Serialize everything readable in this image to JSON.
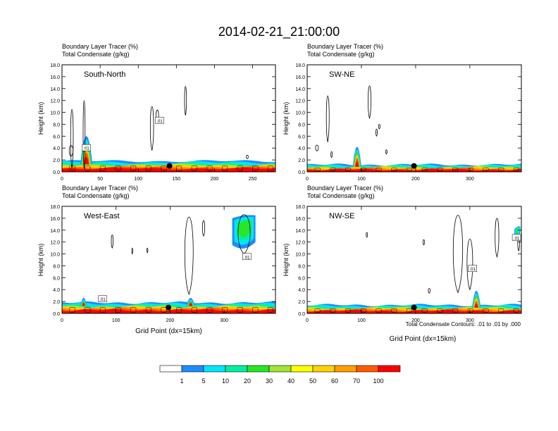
{
  "figure": {
    "title": "2014-02-21_21:00:00",
    "footnote": "Total Condensate Contours: .01 to .01 by .000"
  },
  "colors": {
    "scale": [
      "#ffffff",
      "#1e8cff",
      "#00e6ff",
      "#00f0a0",
      "#28e628",
      "#a0e632",
      "#ffff00",
      "#ffd200",
      "#ffa000",
      "#ff5a00",
      "#ff0000"
    ],
    "contour": "#000000",
    "dot": "#000000"
  },
  "colorbar": {
    "labels": [
      "1",
      "5",
      "10",
      "20",
      "30",
      "40",
      "50",
      "60",
      "70",
      "100"
    ]
  },
  "chart_data": [
    {
      "type": "heatmap",
      "panel": "South-North",
      "title_line1": "Boundary Layer Tracer   (%)",
      "title_line2": "Total Condensate   (g/kg)",
      "label": "South-North",
      "xlabel": "",
      "ylabel": "Height (km)",
      "xlim": [
        0,
        280
      ],
      "ylim": [
        0,
        18
      ],
      "xticks": [
        "0",
        "50",
        "100",
        "150",
        "200",
        "250"
      ],
      "xtick_values": [
        0,
        50,
        100,
        150,
        200,
        250
      ],
      "yticks": [
        "0.0",
        "2.0",
        "4.0",
        "6.0",
        "8.0",
        "10.0",
        "12.0",
        "14.0",
        "16.0",
        "18.0"
      ],
      "bl_top_km": 1.8,
      "plumes": [
        {
          "x": 32,
          "top_km": 6.0,
          "width": 8
        }
      ],
      "dot": {
        "x": 141,
        "y_km": 1.0
      },
      "contour_labels": [
        {
          "x": 128,
          "y_km": 8.6,
          "text": ".01"
        },
        {
          "x": 32,
          "y_km": 4.0,
          "text": ".01"
        }
      ],
      "clouds": [
        {
          "x": 13,
          "ybot": 0.5,
          "ytop": 10.5,
          "w": 4
        },
        {
          "x": 29,
          "ybot": 0.5,
          "ytop": 12.0,
          "w": 3
        },
        {
          "x": 12,
          "ybot": 2.6,
          "ytop": 4.4,
          "w": 6
        },
        {
          "x": 118,
          "ybot": 3.6,
          "ytop": 11.0,
          "w": 5
        },
        {
          "x": 125,
          "ybot": 8.2,
          "ytop": 10.4,
          "w": 4
        },
        {
          "x": 162,
          "ybot": 9.5,
          "ytop": 14.4,
          "w": 3
        },
        {
          "x": 243,
          "ybot": 2.2,
          "ytop": 2.8,
          "w": 3
        }
      ]
    },
    {
      "type": "heatmap",
      "panel": "SW-NE",
      "title_line1": "Boundary Layer Tracer   (%)",
      "title_line2": "Total Condensate   (g/kg)",
      "label": "SW-NE",
      "xlabel": "",
      "ylabel": "Height (km)",
      "xlim": [
        0,
        395
      ],
      "ylim": [
        0,
        18
      ],
      "xticks": [
        "0",
        "100",
        "200",
        "300"
      ],
      "xtick_values": [
        0,
        100,
        200,
        300
      ],
      "yticks": [
        "0.0",
        "2.0",
        "4.0",
        "6.0",
        "8.0",
        "10.0",
        "12.0",
        "14.0",
        "16.0",
        "18.0"
      ],
      "bl_top_km": 1.2,
      "plumes": [
        {
          "x": 92,
          "top_km": 4.2,
          "width": 8
        }
      ],
      "dot": {
        "x": 197,
        "y_km": 1.0
      },
      "contour_labels": [],
      "clouds": [
        {
          "x": 38,
          "ybot": 5.0,
          "ytop": 12.8,
          "w": 6
        },
        {
          "x": 18,
          "ybot": 3.5,
          "ytop": 4.5,
          "w": 6
        },
        {
          "x": 45,
          "ybot": 2.4,
          "ytop": 3.4,
          "w": 3
        },
        {
          "x": 115,
          "ybot": 9.0,
          "ytop": 14.5,
          "w": 6
        },
        {
          "x": 128,
          "ybot": 6.0,
          "ytop": 7.2,
          "w": 3
        },
        {
          "x": 133,
          "ybot": 7.2,
          "ytop": 8.0,
          "w": 3
        },
        {
          "x": 146,
          "ybot": 3.0,
          "ytop": 3.7,
          "w": 3
        }
      ]
    },
    {
      "type": "heatmap",
      "panel": "West-East",
      "title_line1": "Boundary Layer Tracer   (%)",
      "title_line2": "Total Condensate   (g/kg)",
      "label": "West-East",
      "xlabel": "Grid Point (dx=15km)",
      "ylabel": "Height (km)",
      "xlim": [
        0,
        395
      ],
      "ylim": [
        0,
        18
      ],
      "xticks": [
        "0",
        "100",
        "200",
        "300"
      ],
      "xtick_values": [
        0,
        100,
        200,
        300
      ],
      "yticks": [
        "0.0",
        "2.0",
        "4.0",
        "6.0",
        "8.0",
        "10.0",
        "12.0",
        "14.0",
        "16.0",
        "18.0"
      ],
      "bl_top_km": 1.8,
      "plumes": [
        {
          "x": 40,
          "top_km": 2.6,
          "width": 6
        },
        {
          "x": 238,
          "top_km": 2.6,
          "width": 8
        }
      ],
      "anvil": {
        "x0": 315,
        "x1": 358,
        "ybot": 10.5,
        "ytop": 16.5
      },
      "dot": {
        "x": 197,
        "y_km": 1.0
      },
      "contour_labels": [
        {
          "x": 342,
          "y_km": 9.5,
          "text": ".01"
        },
        {
          "x": 75,
          "y_km": 2.4,
          "text": ".01"
        }
      ],
      "clouds": [
        {
          "x": 93,
          "ybot": 11.0,
          "ytop": 13.2,
          "w": 4
        },
        {
          "x": 235,
          "ybot": 3.2,
          "ytop": 16.2,
          "w": 18
        },
        {
          "x": 262,
          "ybot": 13.0,
          "ytop": 15.6,
          "w": 5
        },
        {
          "x": 337,
          "ybot": 10.0,
          "ytop": 16.6,
          "w": 26
        },
        {
          "x": 158,
          "ybot": 10.2,
          "ytop": 11.0,
          "w": 2
        },
        {
          "x": 130,
          "ybot": 10.0,
          "ytop": 11.0,
          "w": 2
        }
      ]
    },
    {
      "type": "heatmap",
      "panel": "NW-SE",
      "title_line1": "Boundary Layer Tracer   (%)",
      "title_line2": "Total Condensate   (g/kg)",
      "label": "NW-SE",
      "xlabel": "Grid Point (dx=15km)",
      "ylabel": "Height (km)",
      "xlim": [
        0,
        395
      ],
      "ylim": [
        0,
        18
      ],
      "xticks": [
        "0",
        "100",
        "200",
        "300"
      ],
      "xtick_values": [
        0,
        100,
        200,
        300
      ],
      "yticks": [
        "0.0",
        "2.0",
        "4.0",
        "6.0",
        "8.0",
        "10.0",
        "12.0",
        "14.0",
        "16.0",
        "18.0"
      ],
      "bl_top_km": 1.4,
      "plumes": [
        {
          "x": 312,
          "top_km": 3.8,
          "width": 8
        }
      ],
      "anvil": {
        "x0": 382,
        "x1": 393,
        "ybot": 12.2,
        "ytop": 14.6
      },
      "dot": {
        "x": 197,
        "y_km": 1.0
      },
      "contour_labels": [
        {
          "x": 305,
          "y_km": 7.5,
          "text": ".01"
        },
        {
          "x": 386,
          "y_km": 12.7,
          "text": ".01"
        }
      ],
      "clouds": [
        {
          "x": 278,
          "ybot": 3.5,
          "ytop": 16.5,
          "w": 20
        },
        {
          "x": 300,
          "ybot": 4.0,
          "ytop": 12.5,
          "w": 12
        },
        {
          "x": 350,
          "ybot": 9.5,
          "ytop": 16.0,
          "w": 8
        },
        {
          "x": 390,
          "ybot": 10.5,
          "ytop": 13.0,
          "w": 4
        },
        {
          "x": 215,
          "ybot": 11.5,
          "ytop": 12.4,
          "w": 3
        },
        {
          "x": 110,
          "ybot": 12.8,
          "ytop": 13.6,
          "w": 3
        },
        {
          "x": 225,
          "ybot": 3.4,
          "ytop": 4.2,
          "w": 4
        }
      ]
    }
  ]
}
